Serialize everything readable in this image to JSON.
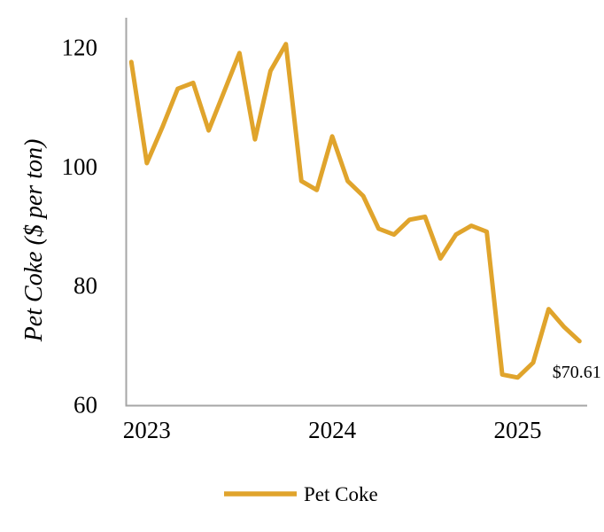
{
  "chart_data": {
    "type": "line",
    "title": "",
    "ylabel": "Pet Coke ($ per ton)",
    "xlabel": "",
    "ylim": [
      60,
      125
    ],
    "yticks": [
      120,
      100,
      80,
      60
    ],
    "xticks": [
      {
        "label": "2023",
        "index": 1
      },
      {
        "label": "2024",
        "index": 13
      },
      {
        "label": "2025",
        "index": 25
      }
    ],
    "x_monthly": [
      "Dec 2022",
      "Jan 2023",
      "Feb 2023",
      "Mar 2023",
      "Apr 2023",
      "May 2023",
      "Jun 2023",
      "Jul 2023",
      "Aug 2023",
      "Sep 2023",
      "Oct 2023",
      "Nov 2023",
      "Dec 2023",
      "Jan 2024",
      "Feb 2024",
      "Mar 2024",
      "Apr 2024",
      "May 2024",
      "Jun 2024",
      "Jul 2024",
      "Aug 2024",
      "Sep 2024",
      "Oct 2024",
      "Nov 2024",
      "Dec 2024",
      "Jan 2025",
      "Feb 2025",
      "Mar 2025",
      "Apr 2025",
      "May 2025"
    ],
    "series": [
      {
        "name": "Pet Coke",
        "color": "#E0A42C",
        "values": [
          117.5,
          100.5,
          106.5,
          113,
          114,
          106,
          112.5,
          119,
          104.5,
          116,
          120.5,
          97.5,
          96,
          105,
          97.5,
          95,
          89.5,
          88.5,
          91,
          91.5,
          84.5,
          88.5,
          90,
          89,
          65,
          64.5,
          67,
          76,
          73,
          70.61
        ]
      }
    ],
    "last_point_label": "$70.61",
    "axis_color": "#A6A6A6",
    "grid": false,
    "legend": {
      "position": "bottom",
      "entries": [
        "Pet Coke"
      ]
    }
  }
}
